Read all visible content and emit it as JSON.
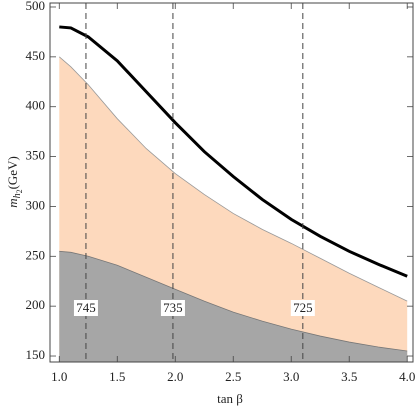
{
  "chart_data": {
    "type": "line",
    "xlabel": "tan β",
    "ylabel": [
      "m",
      "h",
      "2",
      "(GeV)"
    ],
    "x": [
      1.0,
      1.1,
      1.25,
      1.5,
      1.75,
      2.0,
      2.25,
      2.5,
      2.75,
      3.0,
      3.25,
      3.5,
      3.75,
      4.0
    ],
    "series": [
      {
        "kind": "area",
        "color": "#fdd9bd",
        "edge": "#999999",
        "values": [
          450,
          440,
          422,
          388,
          358,
          333,
          312,
          293,
          277,
          263,
          248,
          233,
          219,
          205
        ]
      },
      {
        "kind": "area",
        "color": "#a6a6a6",
        "edge": "#777777",
        "values": [
          255,
          254,
          250,
          241,
          229,
          217,
          205,
          194,
          185,
          177,
          170,
          164,
          159,
          155
        ]
      },
      {
        "kind": "line",
        "color": "#000000",
        "values": [
          480,
          479,
          470,
          446,
          415,
          384,
          355,
          330,
          307,
          287,
          270,
          255,
          242,
          230
        ]
      }
    ],
    "contours": [
      {
        "x": 1.23,
        "level": 745
      },
      {
        "x": 1.98,
        "level": 735
      },
      {
        "x": 3.1,
        "level": 725
      }
    ],
    "xlim": [
      0.92,
      4.05
    ],
    "ylim": [
      144,
      504
    ],
    "xticks": [
      {
        "value": 1.0,
        "label": "1.0"
      },
      {
        "value": 1.5,
        "label": "1.5"
      },
      {
        "value": 2.0,
        "label": "2.0"
      },
      {
        "value": 2.5,
        "label": "2.5"
      },
      {
        "value": 3.0,
        "label": "3.0"
      },
      {
        "value": 3.5,
        "label": "3.5"
      },
      {
        "value": 4.0,
        "label": "4.0"
      }
    ],
    "yticks": [
      150,
      200,
      250,
      300,
      350,
      400,
      450,
      500
    ]
  }
}
